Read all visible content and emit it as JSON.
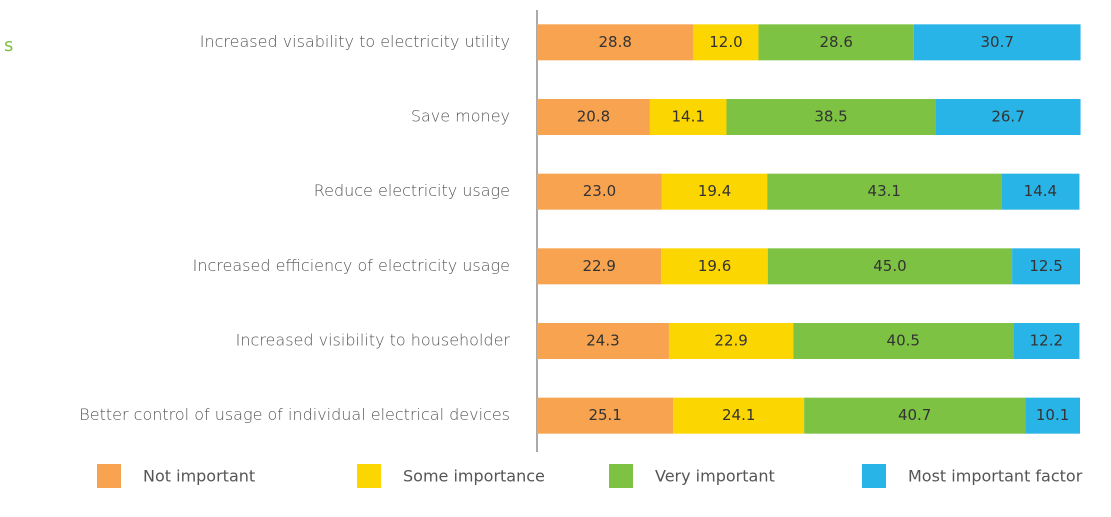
{
  "chart_data": {
    "type": "stacked_bar_horizontal",
    "annotation": "s",
    "categories": [
      "Increased visability to electricity utility",
      "Save money",
      "Reduce electricity usage",
      "Increased efficiency of electricity usage",
      "Increased visibility to householder",
      "Better control of usage of individual electrical devices"
    ],
    "series": [
      {
        "name": "Not important",
        "color": "#f7a350",
        "values": [
          28.8,
          20.8,
          23.0,
          22.9,
          24.3,
          25.1
        ],
        "value_labels": [
          "28.8",
          "20.8",
          "23.0",
          "22.9",
          "24.3",
          "25.1"
        ]
      },
      {
        "name": "Some importance",
        "color": "#fcd600",
        "values": [
          12.0,
          14.1,
          19.4,
          19.6,
          22.9,
          24.1
        ],
        "value_labels": [
          "12.0",
          "14.1",
          "19.4",
          "19.6",
          "22.9",
          "24.1"
        ]
      },
      {
        "name": "Very important",
        "color": "#7dc242",
        "values": [
          28.6,
          38.5,
          43.1,
          45.0,
          40.5,
          40.7
        ],
        "value_labels": [
          "28.6",
          "38.5",
          "43.1",
          "45.0",
          "40.5",
          "40.7"
        ]
      },
      {
        "name": "Most important factor",
        "color": "#29b4e8",
        "values": [
          30.7,
          26.7,
          14.4,
          12.5,
          12.2,
          10.1
        ],
        "value_labels": [
          "30.7",
          "26.7",
          "14.4",
          "12.5",
          "12.2",
          "10.1"
        ]
      }
    ],
    "xlim": [
      0,
      100
    ]
  }
}
